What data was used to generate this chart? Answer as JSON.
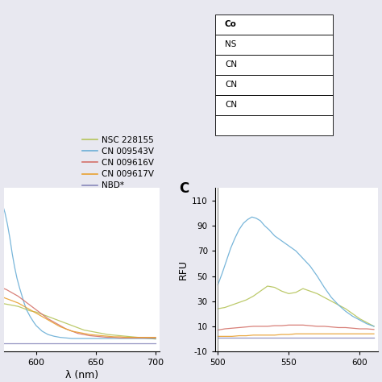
{
  "series": [
    {
      "label": "NSC 228155",
      "color": "#b5c45a",
      "left_data_x": [
        570,
        575,
        580,
        585,
        590,
        595,
        600,
        605,
        610,
        615,
        620,
        625,
        630,
        635,
        640,
        645,
        650,
        655,
        660,
        665,
        670,
        675,
        680,
        685,
        690,
        695,
        700
      ],
      "left_data_y": [
        38,
        37,
        36,
        35,
        33,
        31,
        30,
        28,
        26,
        24,
        22,
        20,
        18,
        16,
        14,
        13,
        12,
        11,
        10,
        9.5,
        9,
        8.5,
        8,
        7.5,
        7,
        6.5,
        6
      ],
      "right_data_x": [
        500,
        505,
        510,
        515,
        520,
        525,
        530,
        535,
        540,
        545,
        550,
        555,
        560,
        565,
        570,
        575,
        580,
        585,
        590,
        595,
        600,
        605,
        610
      ],
      "right_data_y": [
        24,
        25,
        27,
        29,
        31,
        34,
        38,
        42,
        41,
        38,
        36,
        37,
        40,
        38,
        36,
        33,
        30,
        27,
        24,
        20,
        16,
        13,
        10
      ]
    },
    {
      "label": "CN 009543V",
      "color": "#6aaed6",
      "left_data_x": [
        570,
        572,
        574,
        576,
        578,
        580,
        582,
        584,
        586,
        588,
        590,
        592,
        595,
        598,
        600,
        605,
        610,
        615,
        620,
        625,
        630,
        635,
        640,
        645,
        650,
        655,
        660,
        665,
        670,
        675,
        680,
        685,
        690,
        695,
        700
      ],
      "left_data_y": [
        130,
        125,
        118,
        108,
        96,
        82,
        70,
        60,
        52,
        45,
        38,
        32,
        26,
        21,
        18,
        13,
        10,
        8.5,
        7.5,
        7,
        6.5,
        6.5,
        6.5,
        6.5,
        6.5,
        6.5,
        6.5,
        6.5,
        6.5,
        6.5,
        6.5,
        6.5,
        6.5,
        6.5,
        6.5
      ],
      "right_data_x": [
        500,
        503,
        506,
        509,
        512,
        515,
        518,
        521,
        524,
        527,
        530,
        533,
        536,
        540,
        545,
        550,
        555,
        560,
        565,
        570,
        575,
        580,
        585,
        590,
        595,
        600,
        605,
        610
      ],
      "right_data_y": [
        43,
        52,
        62,
        72,
        80,
        87,
        92,
        95,
        97,
        96,
        94,
        90,
        87,
        82,
        78,
        74,
        70,
        64,
        58,
        50,
        41,
        33,
        27,
        22,
        18,
        15,
        12,
        10
      ]
    },
    {
      "label": "CN 009616V",
      "color": "#d4726a",
      "left_data_x": [
        570,
        575,
        580,
        585,
        590,
        595,
        600,
        605,
        610,
        615,
        620,
        625,
        630,
        635,
        640,
        645,
        650,
        655,
        660,
        665,
        670,
        675,
        680,
        685,
        690,
        695,
        700
      ],
      "left_data_y": [
        52,
        50,
        47,
        44,
        40,
        36,
        32,
        28,
        24,
        21,
        18,
        15,
        13,
        11,
        10,
        9,
        8.5,
        8,
        7.5,
        7.5,
        7,
        7,
        7,
        7,
        7,
        7,
        7
      ],
      "right_data_x": [
        500,
        505,
        510,
        515,
        520,
        525,
        530,
        535,
        540,
        545,
        550,
        555,
        560,
        565,
        570,
        575,
        580,
        585,
        590,
        595,
        600,
        605,
        610
      ],
      "right_data_y": [
        7,
        8,
        8.5,
        9,
        9.5,
        10,
        10,
        10,
        10.5,
        10.5,
        11,
        11,
        11,
        10.5,
        10,
        10,
        9.5,
        9,
        9,
        8.5,
        8,
        8,
        7.5
      ]
    },
    {
      "label": "CN 009617V",
      "color": "#e8a030",
      "left_data_x": [
        570,
        575,
        580,
        585,
        590,
        595,
        600,
        605,
        610,
        615,
        620,
        625,
        630,
        635,
        640,
        645,
        650,
        655,
        660,
        665,
        670,
        675,
        680,
        685,
        690,
        695,
        700
      ],
      "left_data_y": [
        44,
        42,
        40,
        38,
        35,
        32,
        29,
        26,
        23,
        20,
        17,
        15,
        13,
        12,
        11,
        10,
        9.5,
        9,
        8.5,
        8,
        8,
        7.5,
        7.5,
        7.5,
        7.5,
        7.5,
        7.5
      ],
      "right_data_x": [
        500,
        505,
        510,
        515,
        520,
        525,
        530,
        535,
        540,
        545,
        550,
        555,
        560,
        565,
        570,
        575,
        580,
        585,
        590,
        595,
        600,
        605,
        610
      ],
      "right_data_y": [
        2,
        2,
        2,
        2.5,
        2.5,
        3,
        3,
        3,
        3,
        3.5,
        3.5,
        4,
        4,
        4,
        4,
        4,
        4,
        4,
        4,
        4,
        4,
        4,
        4
      ]
    },
    {
      "label": "NBD*",
      "color": "#8888bb",
      "left_data_x": [
        570,
        575,
        580,
        585,
        590,
        595,
        600,
        605,
        610,
        615,
        620,
        625,
        630,
        635,
        640,
        645,
        650,
        655,
        660,
        665,
        670,
        675,
        680,
        685,
        690,
        695,
        700
      ],
      "left_data_y": [
        2,
        2,
        2,
        2,
        2,
        2,
        2,
        2,
        2,
        2,
        2,
        2,
        2,
        2,
        2,
        2,
        2,
        2,
        2,
        2,
        2,
        2,
        2,
        2,
        2,
        2,
        2
      ],
      "right_data_x": [
        500,
        505,
        510,
        515,
        520,
        525,
        530,
        535,
        540,
        545,
        550,
        555,
        560,
        565,
        570,
        575,
        580,
        585,
        590,
        595,
        600,
        605,
        610
      ],
      "right_data_y": [
        1,
        1,
        1,
        1,
        1,
        1,
        1,
        1,
        1,
        1,
        1,
        1,
        1,
        1,
        1,
        1,
        1,
        1,
        1,
        1,
        1,
        1,
        1
      ]
    }
  ],
  "left_xlim": [
    573,
    703
  ],
  "left_ylim": [
    -5,
    140
  ],
  "left_xticks": [
    600,
    650,
    700
  ],
  "right_xlim": [
    498,
    613
  ],
  "right_ylim": [
    -10,
    120
  ],
  "right_yticks": [
    -10,
    10,
    30,
    50,
    70,
    90,
    110
  ],
  "right_xticks": [
    500,
    550,
    600
  ],
  "right_xlabel_labels": [
    "500",
    "550",
    "600"
  ],
  "ylabel_right": "RFU",
  "panel_label": "C",
  "xlabel_left": "λ (nm)",
  "legend_labels": [
    "NSC 228155",
    "CN 009543V",
    "CN 009616V",
    "CN 009617V",
    "NBD*"
  ],
  "table_header": "Co",
  "table_rows": [
    "NS",
    "CN",
    "CN",
    "CN",
    ""
  ],
  "bg_color": "#ffffff",
  "fig_bg": "#e8e8f0"
}
